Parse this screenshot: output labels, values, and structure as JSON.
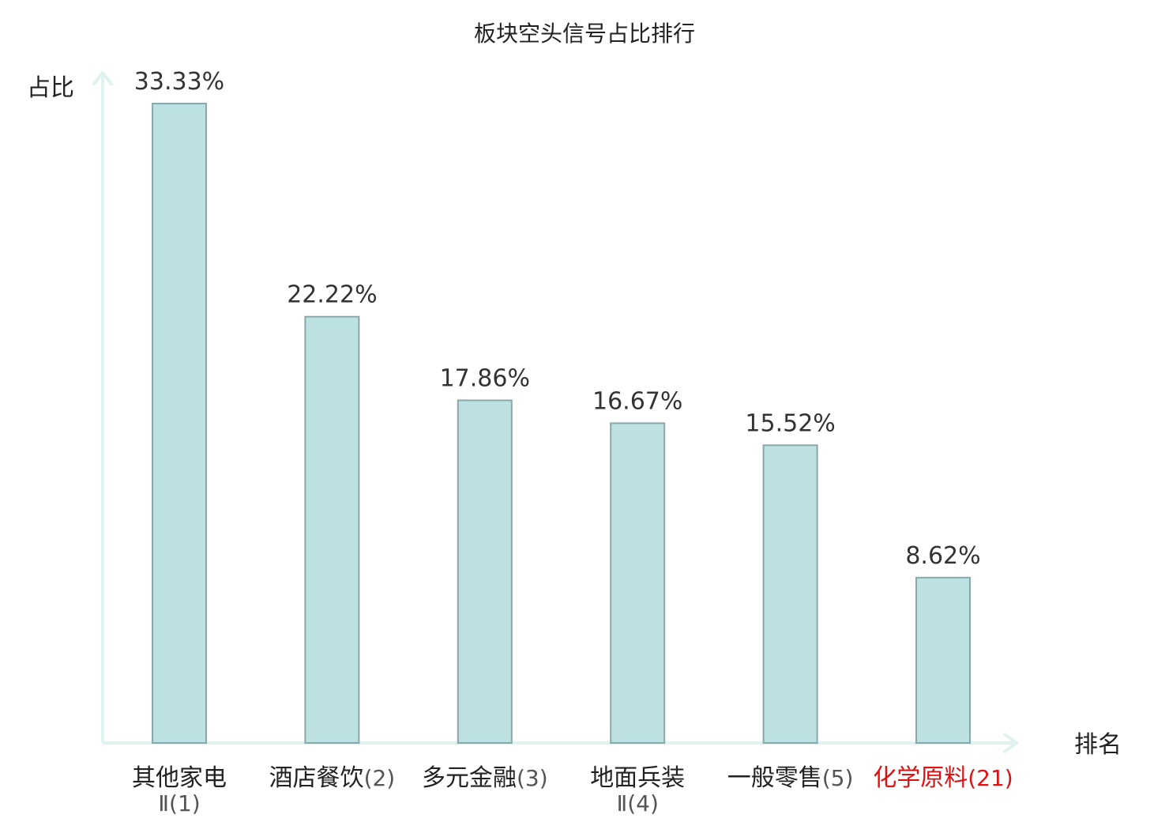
{
  "chart_data": {
    "type": "bar",
    "title": "板块空头信号占比排行",
    "xlabel": "排名",
    "ylabel": "占比",
    "categories": [
      {
        "name": "其他家电",
        "rank": "Ⅱ(1)",
        "wrap": true,
        "highlight": false
      },
      {
        "name": "酒店餐饮",
        "rank": "(2)",
        "wrap": false,
        "highlight": false
      },
      {
        "name": "多元金融",
        "rank": "(3)",
        "wrap": false,
        "highlight": false
      },
      {
        "name": "地面兵装",
        "rank": "Ⅱ(4)",
        "wrap": true,
        "highlight": false
      },
      {
        "name": "一般零售",
        "rank": "(5)",
        "wrap": false,
        "highlight": false
      },
      {
        "name": "化学原料",
        "rank": "(21)",
        "wrap": false,
        "highlight": true
      }
    ],
    "values": [
      33.33,
      22.22,
      17.86,
      16.67,
      15.52,
      8.62
    ],
    "value_labels": [
      "33.33%",
      "22.22%",
      "17.86%",
      "16.67%",
      "15.52%",
      "8.62%"
    ],
    "ylim": [
      0,
      33.33
    ],
    "grid": false,
    "colors": {
      "bar_fill": "#bde0e2",
      "bar_stroke": "#8aa7a9",
      "axis": "#dff2ef",
      "highlight_text": "#dd1111",
      "normal_text": "#222222",
      "rank_text": "#555555"
    }
  }
}
